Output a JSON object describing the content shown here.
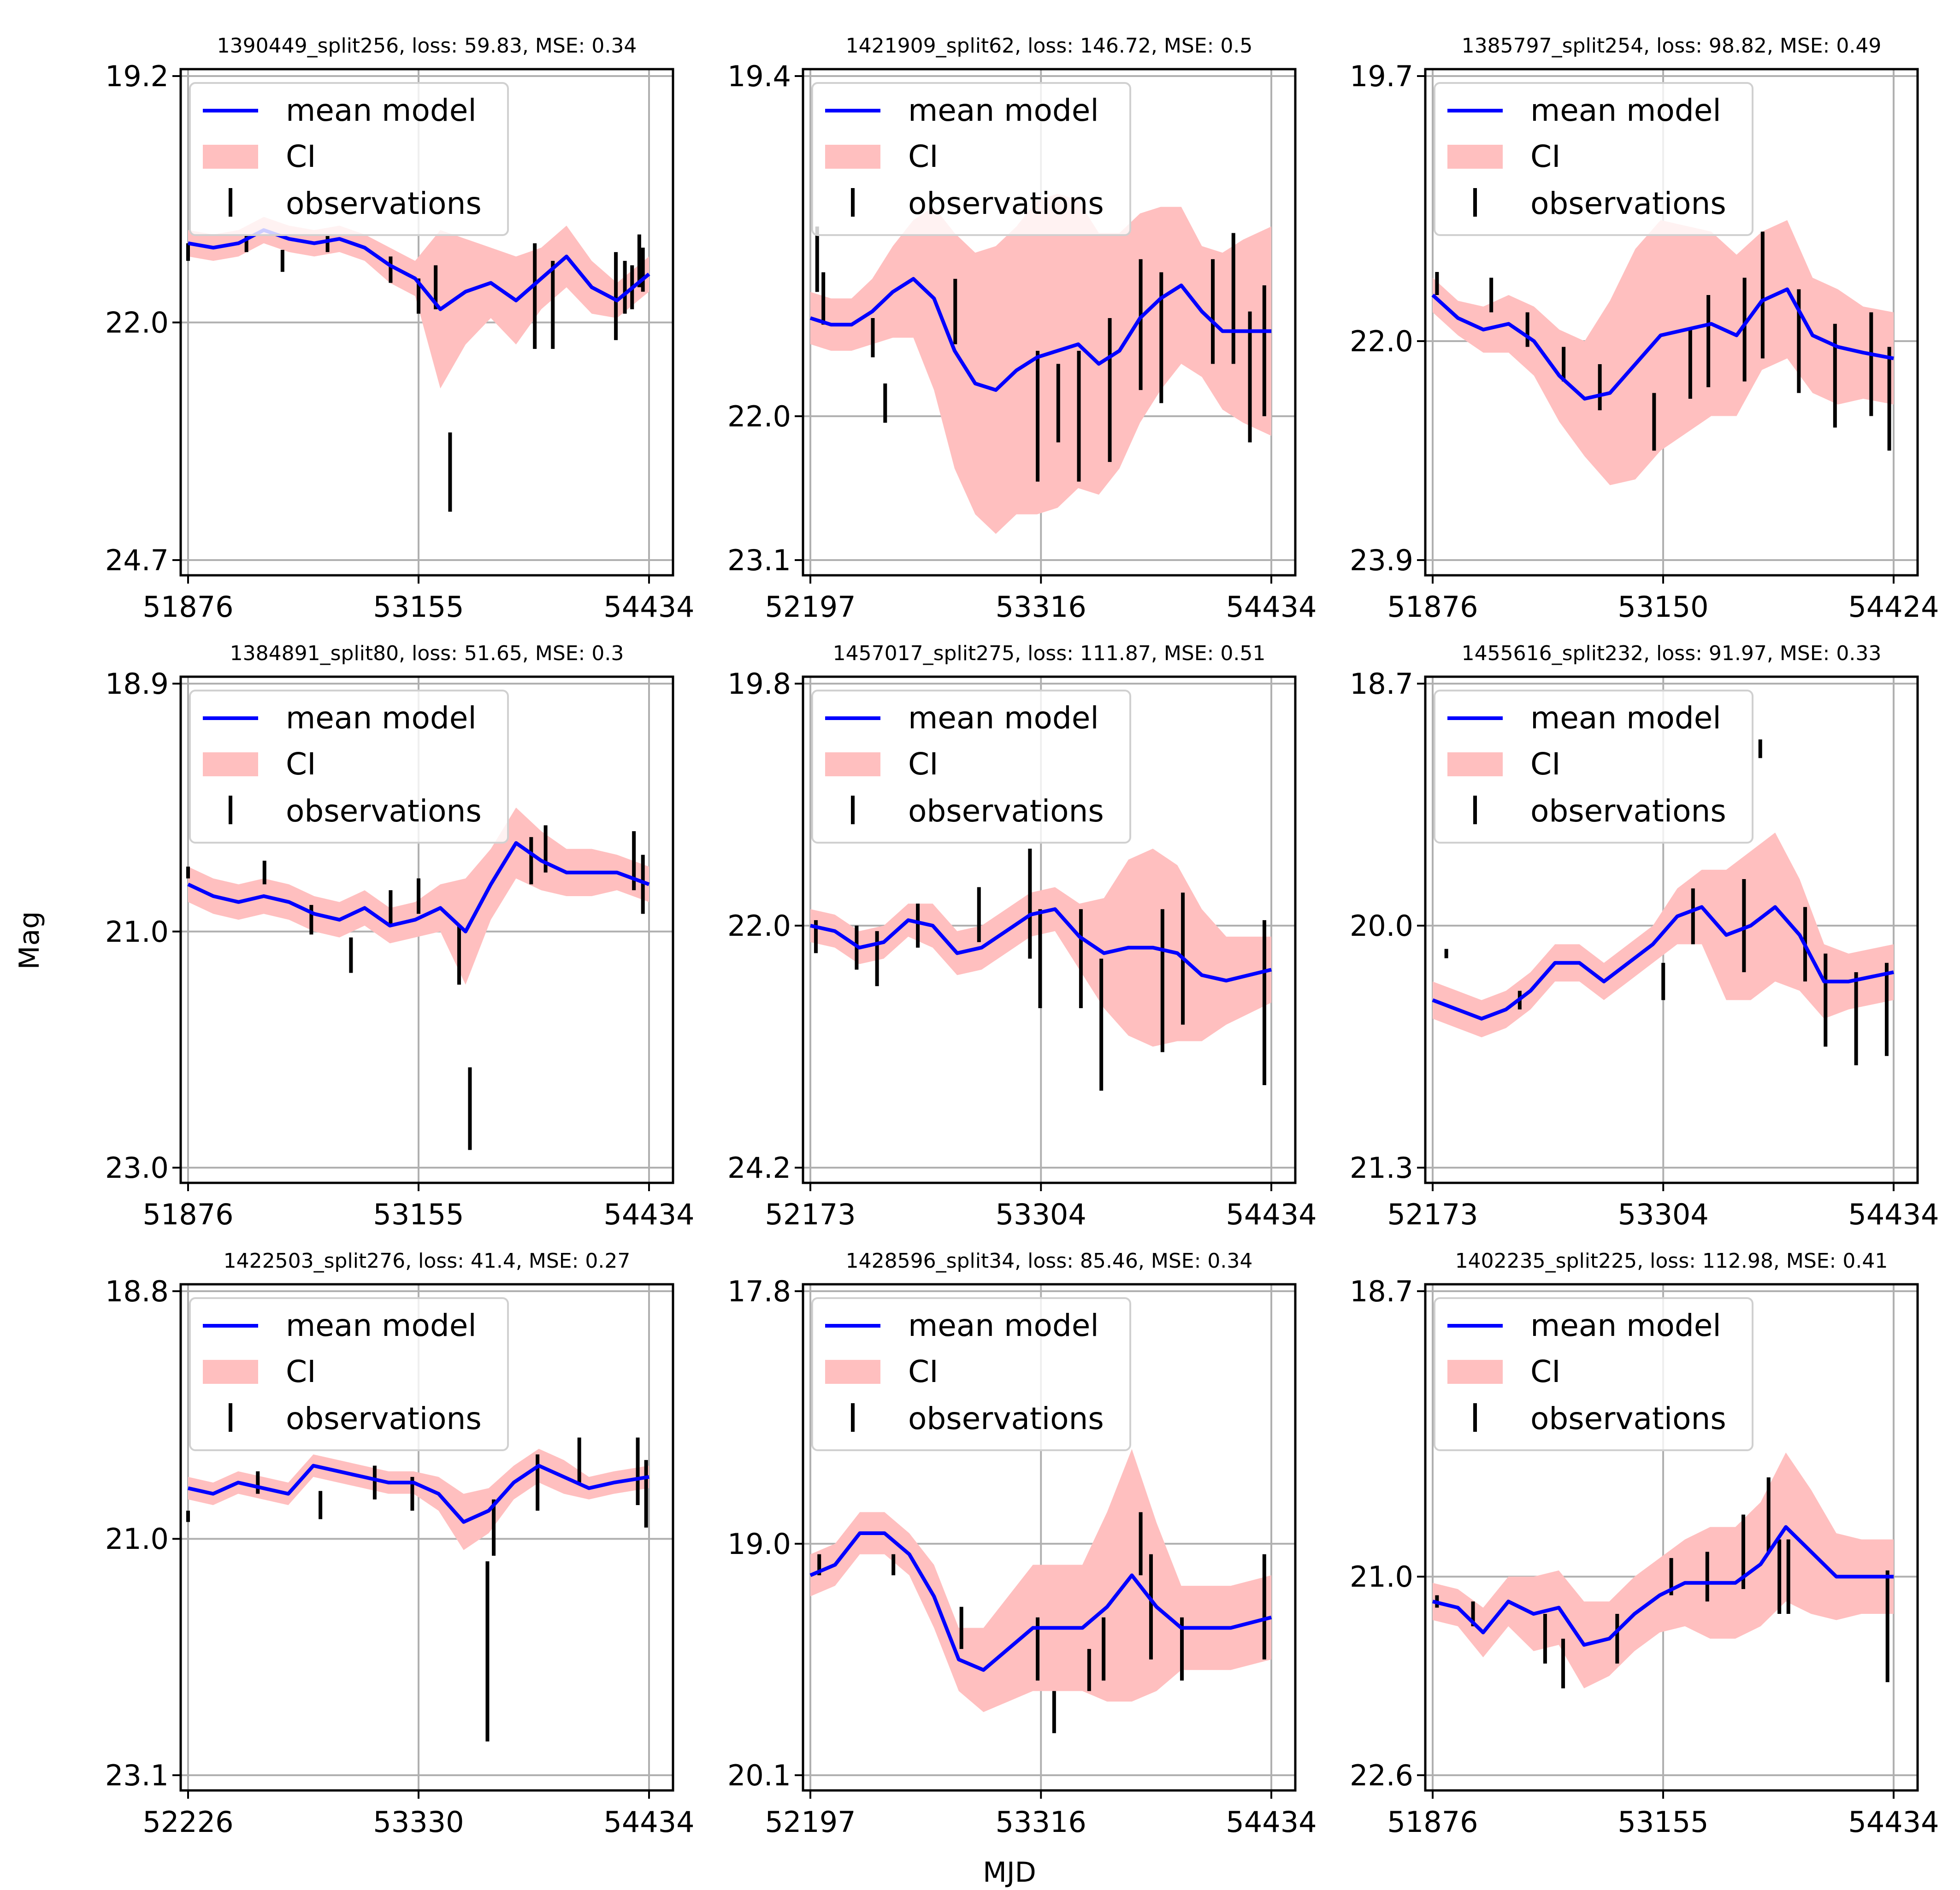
{
  "figure": {
    "xlabel": "MJD",
    "ylabel": "Mag",
    "legend": {
      "position": "upper-left",
      "labels": [
        "mean model",
        "CI",
        "observations"
      ]
    },
    "colors": {
      "model": "#0000ff",
      "ci": "#ffbfbf",
      "observations": "#000000",
      "grid": "#b0b0b0"
    }
  },
  "chart_data": [
    {
      "type": "line",
      "title": "1390449_split256, loss: 59.83, MSE: 0.34",
      "x_ticks": [
        "51876",
        "53155",
        "54434"
      ],
      "y_ticks": [
        "19.2",
        "22.0",
        "24.7"
      ],
      "xlim": [
        51876,
        54434
      ],
      "ylim": [
        24.7,
        19.2
      ],
      "grid": true,
      "x": [
        51876,
        52016,
        52156,
        52296,
        52436,
        52576,
        52716,
        52856,
        52996,
        53136,
        53276,
        53416,
        53556,
        53696,
        53836,
        53976,
        54116,
        54256,
        54434
      ],
      "mean": [
        21.1,
        21.15,
        21.1,
        20.95,
        21.05,
        21.1,
        21.05,
        21.15,
        21.35,
        21.5,
        21.85,
        21.65,
        21.55,
        21.75,
        21.5,
        21.25,
        21.6,
        21.75,
        21.45
      ],
      "ci_width": [
        0.15,
        0.15,
        0.15,
        0.15,
        0.15,
        0.15,
        0.15,
        0.15,
        0.2,
        0.2,
        0.9,
        0.6,
        0.4,
        0.5,
        0.35,
        0.35,
        0.3,
        0.2,
        0.2
      ],
      "obs_times": [
        51876,
        52200,
        52400,
        52650,
        53000,
        53155,
        53250,
        53330,
        53800,
        53900,
        54250,
        54300,
        54340,
        54380,
        54400
      ],
      "obs_mags": [
        21.2,
        21.1,
        21.3,
        21.1,
        21.4,
        21.7,
        21.6,
        23.7,
        21.7,
        21.8,
        21.7,
        21.6,
        21.6,
        21.3,
        21.4
      ],
      "obs_errs": [
        0.2,
        0.2,
        0.25,
        0.2,
        0.3,
        0.4,
        0.5,
        0.9,
        1.2,
        1.0,
        1.0,
        0.6,
        0.5,
        0.6,
        0.5
      ]
    },
    {
      "type": "line",
      "title": "1421909_split62, loss: 146.72, MSE: 0.5",
      "x_ticks": [
        "52197",
        "53316",
        "54434"
      ],
      "y_ticks": [
        "19.4",
        "22.0",
        "23.1"
      ],
      "xlim": [
        52197,
        54434
      ],
      "ylim": [
        23.1,
        19.4
      ],
      "grid": true,
      "x": [
        52197,
        52297,
        52397,
        52497,
        52597,
        52697,
        52797,
        52897,
        52997,
        53097,
        53197,
        53297,
        53397,
        53497,
        53597,
        53697,
        53797,
        53897,
        53997,
        54097,
        54197,
        54297,
        54434
      ],
      "mean": [
        21.25,
        21.3,
        21.3,
        21.2,
        21.05,
        20.95,
        21.1,
        21.5,
        21.75,
        21.8,
        21.65,
        21.55,
        21.5,
        21.45,
        21.6,
        21.5,
        21.25,
        21.1,
        21.0,
        21.2,
        21.35,
        21.35,
        21.35
      ],
      "ci_width": [
        0.2,
        0.2,
        0.2,
        0.25,
        0.35,
        0.45,
        0.7,
        0.9,
        1.0,
        1.1,
        1.1,
        1.2,
        1.2,
        1.1,
        1.0,
        0.9,
        0.8,
        0.7,
        0.6,
        0.5,
        0.6,
        0.7,
        0.8
      ],
      "obs_times": [
        52230,
        52260,
        52500,
        52560,
        52900,
        53300,
        53400,
        53500,
        53650,
        53800,
        53900,
        54150,
        54250,
        54330,
        54400
      ],
      "obs_mags": [
        20.8,
        21.1,
        21.4,
        21.9,
        21.2,
        22.0,
        21.9,
        22.0,
        21.8,
        21.3,
        21.4,
        21.2,
        21.1,
        21.7,
        21.5
      ],
      "obs_errs": [
        0.5,
        0.4,
        0.3,
        0.3,
        0.5,
        1.0,
        0.6,
        1.0,
        1.1,
        1.0,
        1.0,
        0.8,
        1.0,
        1.0,
        1.0
      ]
    },
    {
      "type": "line",
      "title": "1385797_split254, loss: 98.82, MSE: 0.49",
      "x_ticks": [
        "51876",
        "53150",
        "54424"
      ],
      "y_ticks": [
        "19.7",
        "22.0",
        "23.9"
      ],
      "xlim": [
        51876,
        54424
      ],
      "ylim": [
        23.9,
        19.7
      ],
      "grid": true,
      "x": [
        51876,
        52016,
        52156,
        52296,
        52436,
        52576,
        52716,
        52856,
        52996,
        53136,
        53276,
        53416,
        53556,
        53696,
        53836,
        53976,
        54116,
        54256,
        54424
      ],
      "mean": [
        21.6,
        21.8,
        21.9,
        21.85,
        22.0,
        22.3,
        22.5,
        22.45,
        22.2,
        21.95,
        21.9,
        21.85,
        21.95,
        21.65,
        21.55,
        21.95,
        22.05,
        22.1,
        22.15
      ],
      "ci_width": [
        0.15,
        0.15,
        0.2,
        0.25,
        0.3,
        0.4,
        0.5,
        0.8,
        1.0,
        1.0,
        0.9,
        0.8,
        0.7,
        0.6,
        0.6,
        0.5,
        0.5,
        0.4,
        0.4
      ],
      "obs_times": [
        51900,
        52200,
        52400,
        52600,
        52800,
        53100,
        53300,
        53400,
        53600,
        53700,
        53900,
        54100,
        54300,
        54400
      ],
      "obs_mags": [
        21.5,
        21.6,
        21.9,
        22.2,
        22.4,
        22.7,
        22.2,
        22.0,
        21.9,
        21.6,
        22.0,
        22.3,
        22.2,
        22.5
      ],
      "obs_errs": [
        0.2,
        0.3,
        0.3,
        0.3,
        0.4,
        0.5,
        0.6,
        0.8,
        0.9,
        1.1,
        0.9,
        0.9,
        0.9,
        0.9
      ]
    },
    {
      "type": "line",
      "title": "1384891_split80, loss: 51.65, MSE: 0.3",
      "x_ticks": [
        "51876",
        "53155",
        "54434"
      ],
      "y_ticks": [
        "18.9",
        "21.0",
        "23.0"
      ],
      "xlim": [
        51876,
        54434
      ],
      "ylim": [
        23.0,
        18.9
      ],
      "grid": true,
      "x": [
        51876,
        52016,
        52156,
        52296,
        52436,
        52576,
        52716,
        52856,
        52996,
        53136,
        53276,
        53416,
        53556,
        53696,
        53836,
        53976,
        54116,
        54256,
        54434
      ],
      "mean": [
        20.6,
        20.7,
        20.75,
        20.7,
        20.75,
        20.85,
        20.9,
        20.8,
        20.95,
        20.9,
        20.8,
        21.0,
        20.6,
        20.25,
        20.4,
        20.5,
        20.5,
        20.5,
        20.6
      ],
      "ci_width": [
        0.15,
        0.15,
        0.15,
        0.15,
        0.15,
        0.15,
        0.15,
        0.15,
        0.15,
        0.15,
        0.2,
        0.45,
        0.3,
        0.3,
        0.25,
        0.2,
        0.2,
        0.15,
        0.15
      ],
      "obs_times": [
        51876,
        52300,
        52560,
        52780,
        53000,
        53155,
        53380,
        53440,
        53780,
        53860,
        54350,
        54400
      ],
      "obs_mags": [
        20.5,
        20.5,
        20.9,
        21.2,
        20.8,
        20.7,
        21.2,
        22.5,
        20.4,
        20.3,
        20.4,
        20.6
      ],
      "obs_errs": [
        0.1,
        0.2,
        0.25,
        0.3,
        0.3,
        0.3,
        0.5,
        0.7,
        0.4,
        0.4,
        0.5,
        0.5
      ]
    },
    {
      "type": "line",
      "title": "1457017_split275, loss: 111.87, MSE: 0.51",
      "x_ticks": [
        "52173",
        "53304",
        "54434"
      ],
      "y_ticks": [
        "19.8",
        "22.0",
        "24.2"
      ],
      "xlim": [
        52173,
        54434
      ],
      "ylim": [
        24.2,
        19.8
      ],
      "grid": true,
      "x": [
        52173,
        52293,
        52413,
        52533,
        52653,
        52773,
        52893,
        53013,
        53133,
        53253,
        53373,
        53493,
        53613,
        53733,
        53853,
        53973,
        54093,
        54213,
        54434
      ],
      "mean": [
        22.0,
        22.05,
        22.2,
        22.15,
        21.95,
        22.0,
        22.25,
        22.2,
        22.05,
        21.9,
        21.85,
        22.1,
        22.25,
        22.2,
        22.2,
        22.25,
        22.45,
        22.5,
        22.4
      ],
      "ci_width": [
        0.15,
        0.15,
        0.15,
        0.15,
        0.15,
        0.2,
        0.2,
        0.2,
        0.2,
        0.2,
        0.2,
        0.3,
        0.5,
        0.8,
        0.9,
        0.8,
        0.6,
        0.4,
        0.3
      ],
      "obs_times": [
        52200,
        52400,
        52500,
        52700,
        53000,
        53250,
        53300,
        53500,
        53600,
        53900,
        54000,
        54400
      ],
      "obs_mags": [
        22.1,
        22.2,
        22.3,
        22.0,
        21.9,
        21.8,
        22.3,
        22.3,
        22.9,
        22.5,
        22.3,
        22.7
      ],
      "obs_errs": [
        0.3,
        0.4,
        0.5,
        0.4,
        0.5,
        1.0,
        0.9,
        0.9,
        1.2,
        1.3,
        1.2,
        1.5
      ]
    },
    {
      "type": "line",
      "title": "1455616_split232, loss: 91.97, MSE: 0.33",
      "x_ticks": [
        "52173",
        "53304",
        "54434"
      ],
      "y_ticks": [
        "18.7",
        "20.0",
        "21.3"
      ],
      "xlim": [
        52173,
        54434
      ],
      "ylim": [
        21.3,
        18.7
      ],
      "grid": true,
      "x": [
        52173,
        52293,
        52413,
        52533,
        52653,
        52773,
        52893,
        53013,
        53133,
        53253,
        53373,
        53493,
        53613,
        53733,
        53853,
        53973,
        54093,
        54213,
        54434
      ],
      "mean": [
        20.4,
        20.45,
        20.5,
        20.45,
        20.35,
        20.2,
        20.2,
        20.3,
        20.2,
        20.1,
        19.95,
        19.9,
        20.05,
        20.0,
        19.9,
        20.05,
        20.3,
        20.3,
        20.25
      ],
      "ci_width": [
        0.1,
        0.1,
        0.1,
        0.1,
        0.1,
        0.1,
        0.1,
        0.1,
        0.1,
        0.1,
        0.15,
        0.2,
        0.35,
        0.4,
        0.4,
        0.3,
        0.2,
        0.15,
        0.15
      ],
      "obs_times": [
        52240,
        52600,
        53304,
        53450,
        53700,
        53780,
        54000,
        54100,
        54250,
        54400
      ],
      "obs_mags": [
        20.15,
        20.4,
        20.3,
        19.95,
        20.0,
        19.05,
        20.1,
        20.4,
        20.5,
        20.45
      ],
      "obs_errs": [
        0.05,
        0.1,
        0.2,
        0.3,
        0.5,
        0.1,
        0.4,
        0.5,
        0.5,
        0.5
      ]
    },
    {
      "type": "line",
      "title": "1422503_split276, loss: 41.4, MSE: 0.27",
      "x_ticks": [
        "52226",
        "53330",
        "54434"
      ],
      "y_ticks": [
        "18.8",
        "21.0",
        "23.1"
      ],
      "xlim": [
        52226,
        54434
      ],
      "ylim": [
        23.1,
        18.8
      ],
      "grid": true,
      "x": [
        52226,
        52346,
        52466,
        52586,
        52706,
        52826,
        52946,
        53066,
        53186,
        53306,
        53426,
        53546,
        53666,
        53786,
        53906,
        54026,
        54146,
        54266,
        54434
      ],
      "mean": [
        20.55,
        20.6,
        20.5,
        20.55,
        20.6,
        20.35,
        20.4,
        20.45,
        20.5,
        20.5,
        20.6,
        20.85,
        20.75,
        20.5,
        20.35,
        20.45,
        20.55,
        20.5,
        20.45
      ],
      "ci_width": [
        0.1,
        0.1,
        0.1,
        0.1,
        0.1,
        0.1,
        0.1,
        0.1,
        0.1,
        0.1,
        0.15,
        0.25,
        0.2,
        0.15,
        0.15,
        0.15,
        0.1,
        0.1,
        0.1
      ],
      "obs_times": [
        52226,
        52560,
        52860,
        53120,
        53300,
        53660,
        53690,
        53900,
        54100,
        54380,
        54420
      ],
      "obs_mags": [
        20.8,
        20.5,
        20.7,
        20.5,
        20.6,
        22.0,
        20.9,
        20.5,
        20.3,
        20.4,
        20.6
      ],
      "obs_errs": [
        0.1,
        0.2,
        0.25,
        0.3,
        0.3,
        1.6,
        0.5,
        0.5,
        0.4,
        0.6,
        0.6
      ]
    },
    {
      "type": "line",
      "title": "1428596_split34, loss: 85.46, MSE: 0.34",
      "x_ticks": [
        "52197",
        "53316",
        "54434"
      ],
      "y_ticks": [
        "17.8",
        "19.0",
        "20.1"
      ],
      "xlim": [
        52197,
        54434
      ],
      "ylim": [
        20.1,
        17.8
      ],
      "grid": true,
      "x": [
        52197,
        52317,
        52437,
        52557,
        52677,
        52797,
        52917,
        53037,
        53157,
        53277,
        53397,
        53517,
        53637,
        53757,
        53877,
        53997,
        54117,
        54237,
        54434
      ],
      "mean": [
        19.15,
        19.1,
        18.95,
        18.95,
        19.05,
        19.25,
        19.55,
        19.6,
        19.5,
        19.4,
        19.4,
        19.4,
        19.3,
        19.15,
        19.3,
        19.4,
        19.4,
        19.4,
        19.35
      ],
      "ci_width": [
        0.1,
        0.1,
        0.1,
        0.1,
        0.1,
        0.15,
        0.15,
        0.2,
        0.25,
        0.3,
        0.3,
        0.3,
        0.45,
        0.6,
        0.4,
        0.2,
        0.2,
        0.2,
        0.2
      ],
      "obs_times": [
        52240,
        52600,
        52930,
        53300,
        53380,
        53550,
        53620,
        53800,
        53850,
        54000,
        54400
      ],
      "obs_mags": [
        19.1,
        19.1,
        19.4,
        19.5,
        19.8,
        19.6,
        19.5,
        19.0,
        19.3,
        19.5,
        19.3
      ],
      "obs_errs": [
        0.1,
        0.1,
        0.2,
        0.3,
        0.2,
        0.2,
        0.3,
        0.3,
        0.5,
        0.3,
        0.5
      ]
    },
    {
      "type": "line",
      "title": "1402235_split225, loss: 112.98, MSE: 0.41",
      "x_ticks": [
        "51876",
        "53155",
        "54434"
      ],
      "y_ticks": [
        "18.7",
        "21.0",
        "22.6"
      ],
      "xlim": [
        51876,
        54434
      ],
      "ylim": [
        22.6,
        18.7
      ],
      "grid": true,
      "x": [
        51876,
        52016,
        52156,
        52296,
        52436,
        52576,
        52716,
        52856,
        52996,
        53136,
        53276,
        53416,
        53556,
        53696,
        53836,
        53976,
        54116,
        54256,
        54434
      ],
      "mean": [
        21.2,
        21.25,
        21.45,
        21.2,
        21.3,
        21.25,
        21.55,
        21.5,
        21.3,
        21.15,
        21.05,
        21.05,
        21.05,
        20.9,
        20.6,
        20.8,
        21.0,
        21.0,
        21.0
      ],
      "ci_width": [
        0.15,
        0.15,
        0.2,
        0.2,
        0.3,
        0.3,
        0.35,
        0.3,
        0.3,
        0.3,
        0.35,
        0.45,
        0.45,
        0.5,
        0.6,
        0.5,
        0.35,
        0.3,
        0.3
      ],
      "obs_times": [
        51900,
        52100,
        52500,
        52600,
        52900,
        53200,
        53400,
        53600,
        53740,
        53800,
        53850,
        54400
      ],
      "obs_mags": [
        21.2,
        21.3,
        21.5,
        21.7,
        21.5,
        21.0,
        21.0,
        20.8,
        20.5,
        21.0,
        21.0,
        21.4
      ],
      "obs_errs": [
        0.1,
        0.2,
        0.4,
        0.4,
        0.4,
        0.3,
        0.4,
        0.6,
        0.6,
        0.6,
        0.6,
        0.9
      ]
    }
  ]
}
